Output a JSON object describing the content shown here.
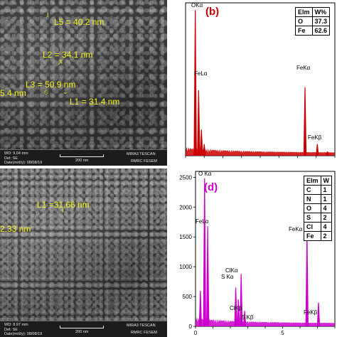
{
  "panel_a": {
    "measurements": [
      "L5 = 40.2 nm",
      "L2 = 34.1 nm",
      "L3 = 50.9 nm",
      "L1 = 31.4 nm",
      "5.4 nm"
    ],
    "info": {
      "wd": "WD: 9.04 mm",
      "det": "Det: SE",
      "date": "Date(m/d/y): 08/08/19",
      "scale": "200 nm",
      "brand": "MIRA3 TESCAN",
      "lab": "RMRC FESEM"
    }
  },
  "panel_c": {
    "measurements": [
      "L1 =31.66 nm",
      "2.33 nm"
    ],
    "info": {
      "wd": "WD: 8.97 mm",
      "det": "Det: SE",
      "date": "Date(m/d/y): 08/08/19",
      "scale": "200 nm",
      "brand": "MIRA3 TESCAN",
      "lab": "RMRC FESEM"
    }
  },
  "panel_b": {
    "label": "(b)",
    "color": "#cc0000",
    "table": {
      "header": [
        "Elm",
        "W%"
      ],
      "rows": [
        [
          "O",
          "37.3"
        ],
        [
          "Fe",
          "62.6"
        ]
      ]
    },
    "peak_labels": [
      "OKα",
      "FeLα",
      "FeKα",
      "FeKβ"
    ],
    "y_ticks": [],
    "x_ticks": []
  },
  "panel_d": {
    "label": "(d)",
    "color": "#cc00cc",
    "table": {
      "header": [
        "Elm",
        "W"
      ],
      "rows": [
        [
          "C",
          "1"
        ],
        [
          "N",
          "1"
        ],
        [
          "O",
          "4"
        ],
        [
          "S",
          "2"
        ],
        [
          "Cl",
          "4"
        ],
        [
          "Fe",
          "2"
        ]
      ]
    },
    "peak_labels": [
      "O Kα",
      "FeLα",
      "ClKα",
      "S Kα",
      "FeKα",
      "ClKβ",
      "S Kβ",
      "FeKβ"
    ],
    "y_ticks": [
      "2500",
      "2000",
      "1500",
      "1000",
      "500",
      "0"
    ],
    "x_ticks": [
      "0",
      "5"
    ]
  },
  "chart_data": [
    {
      "type": "bar",
      "title": "(b)",
      "xlabel": "",
      "ylabel": "",
      "x": [
        0.52,
        0.7,
        0.85,
        1.0,
        6.4,
        7.06,
        7.6
      ],
      "values": [
        1.0,
        0.45,
        0.18,
        0.08,
        0.47,
        0.08,
        0.03
      ],
      "ylim": [
        0,
        1.05
      ],
      "xlim": [
        0,
        8
      ]
    },
    {
      "type": "bar",
      "title": "(d)",
      "xlabel": "",
      "ylabel": "",
      "x": [
        0.28,
        0.52,
        0.7,
        2.31,
        2.46,
        2.62,
        2.82,
        6.4,
        7.06
      ],
      "values": [
        600,
        2480,
        1680,
        650,
        450,
        880,
        260,
        1560,
        400
      ],
      "ylim": [
        0,
        2600
      ],
      "xlim": [
        0,
        8
      ]
    }
  ]
}
